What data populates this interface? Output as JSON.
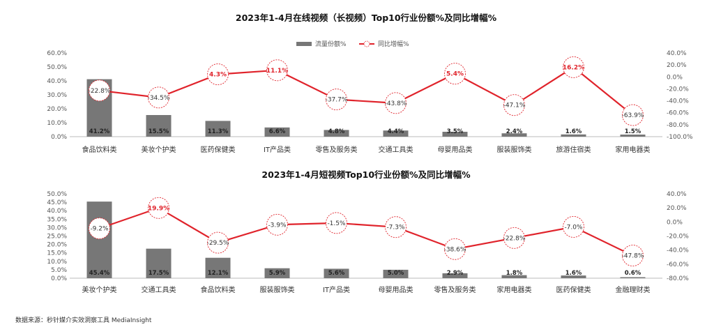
{
  "chart_data": [
    {
      "type": "bar",
      "title": "2023年1-4月在线视频（长视频）Top10行业份额%及同比增幅%",
      "categories": [
        "食品饮料类",
        "美妆个护类",
        "医药保健类",
        "IT产品类",
        "零售及服务类",
        "交通工具类",
        "母婴用品类",
        "服装服饰类",
        "旅游住宿类",
        "家用电器类"
      ],
      "series": [
        {
          "name": "流量份额%",
          "type": "bar",
          "axis": "left",
          "color": "#777777",
          "values": [
            41.2,
            15.5,
            11.3,
            6.6,
            4.8,
            4.4,
            3.5,
            2.4,
            1.6,
            1.5
          ],
          "labels": [
            "41.2%",
            "15.5%",
            "11.3%",
            "6.6%",
            "4.8%",
            "4.4%",
            "3.5%",
            "2.4%",
            "1.6%",
            "1.5%"
          ]
        },
        {
          "name": "同比增幅%",
          "type": "line",
          "axis": "right",
          "color": "#e0232b",
          "values": [
            -22.8,
            -34.5,
            4.3,
            11.1,
            -37.7,
            -43.8,
            5.4,
            -47.1,
            16.2,
            -63.9
          ],
          "labels": [
            "-22.8%",
            "-34.5%",
            "4.3%",
            "11.1%",
            "-37.7%",
            "-43.8%",
            "5.4%",
            "-47.1%",
            "16.2%",
            "-63.9%"
          ]
        }
      ],
      "ylim": [
        0,
        60
      ],
      "y2lim": [
        -100,
        40
      ],
      "yticks": [
        "60.0%",
        "50.0%",
        "40.0%",
        "30.0%",
        "20.0%",
        "10.0%",
        "0.0%"
      ],
      "y2ticks": [
        "40.0%",
        "20.0%",
        "0.0%",
        "-20.0%",
        "-40.0%",
        "-60.0%",
        "-80.0%",
        "-100.0%"
      ],
      "legend": "top-center",
      "grid": false
    },
    {
      "type": "bar",
      "title": "2023年1-4月短视频Top10行业份额%及同比增幅%",
      "categories": [
        "美妆个护类",
        "交通工具类",
        "食品饮料类",
        "服装服饰类",
        "IT产品类",
        "母婴用品类",
        "零售及服务类",
        "家用电器类",
        "医药保健类",
        "金融理财类"
      ],
      "series": [
        {
          "name": "流量份额%",
          "type": "bar",
          "axis": "left",
          "color": "#777777",
          "values": [
            45.4,
            17.5,
            12.1,
            5.9,
            5.6,
            5.0,
            2.9,
            1.8,
            1.6,
            0.6
          ],
          "labels": [
            "45.4%",
            "17.5%",
            "12.1%",
            "5.9%",
            "5.6%",
            "5.0%",
            "2.9%",
            "1.8%",
            "1.6%",
            "0.6%"
          ]
        },
        {
          "name": "同比增幅%",
          "type": "line",
          "axis": "right",
          "color": "#e0232b",
          "values": [
            -9.2,
            19.9,
            -29.5,
            -3.9,
            -1.5,
            -7.3,
            -38.6,
            -22.8,
            -7.0,
            -47.8
          ],
          "labels": [
            "-9.2%",
            "19.9%",
            "-29.5%",
            "-3.9%",
            "-1.5%",
            "-7.3%",
            "-38.6%",
            "-22.8%",
            "-7.0%",
            "-47.8%"
          ]
        }
      ],
      "ylim": [
        0,
        50
      ],
      "y2lim": [
        -80,
        40
      ],
      "yticks": [
        "50.0%",
        "45.0%",
        "40.0%",
        "35.0%",
        "30.0%",
        "25.0%",
        "20.0%",
        "15.0%",
        "10.0%",
        "5.0%",
        "0.0%"
      ],
      "y2ticks": [
        "40.0%",
        "20.0%",
        "0.0%",
        "-20.0%",
        "-40.0%",
        "-60.0%",
        "-80.0%"
      ],
      "legend": "none",
      "grid": false
    }
  ],
  "source": "数据来源：秒针媒介实效洞察工具 MediaInsight"
}
